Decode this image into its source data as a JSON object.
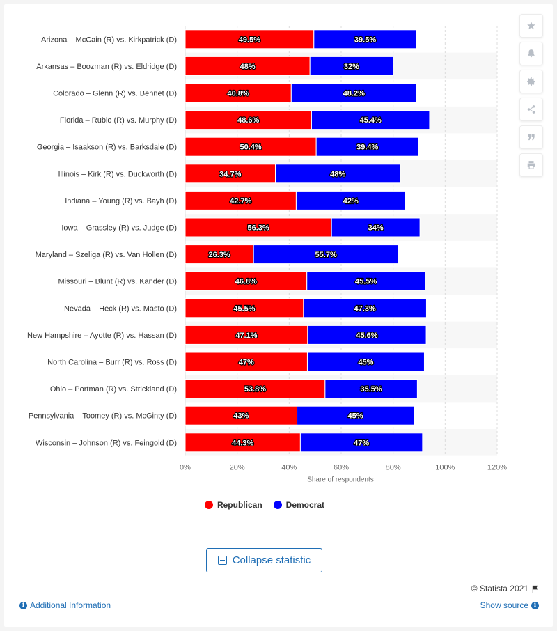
{
  "toolbar": {
    "buttons": [
      "star-icon",
      "bell-icon",
      "gear-icon",
      "share-icon",
      "quote-icon",
      "print-icon"
    ]
  },
  "chart_data": {
    "type": "bar",
    "orientation": "horizontal",
    "stacked": true,
    "categories": [
      "Arizona – McCain (R) vs. Kirkpatrick (D)",
      "Arkansas – Boozman (R) vs. Eldridge (D)",
      "Colorado – Glenn (R) vs. Bennet (D)",
      "Florida – Rubio (R) vs. Murphy (D)",
      "Georgia – Isaakson (R) vs. Barksdale (D)",
      "Illinois – Kirk (R) vs. Duckworth (D)",
      "Indiana – Young (R) vs. Bayh (D)",
      "Iowa – Grassley (R) vs. Judge (D)",
      "Maryland – Szeliga (R) vs. Van Hollen (D)",
      "Missouri – Blunt (R) vs. Kander (D)",
      "Nevada – Heck (R) vs. Masto (D)",
      "New Hampshire – Ayotte (R) vs. Hassan (D)",
      "North Carolina – Burr (R) vs. Ross (D)",
      "Ohio – Portman (R) vs. Strickland (D)",
      "Pennsylvania – Toomey (R) vs. McGinty (D)",
      "Wisconsin – Johnson (R) vs. Feingold (D)"
    ],
    "series": [
      {
        "name": "Republican",
        "color": "#ff0000",
        "values": [
          49.5,
          48,
          40.8,
          48.6,
          50.4,
          34.7,
          42.7,
          56.3,
          26.3,
          46.8,
          45.5,
          47.1,
          47,
          53.8,
          43,
          44.3
        ],
        "labels": [
          "49.5%",
          "48%",
          "40.8%",
          "48.6%",
          "50.4%",
          "34.7%",
          "42.7%",
          "56.3%",
          "26.3%",
          "46.8%",
          "45.5%",
          "47.1%",
          "47%",
          "53.8%",
          "43%",
          "44.3%"
        ]
      },
      {
        "name": "Democrat",
        "color": "#0000ff",
        "values": [
          39.5,
          32,
          48.2,
          45.4,
          39.4,
          48,
          42,
          34,
          55.7,
          45.5,
          47.3,
          45.6,
          45,
          35.5,
          45,
          47
        ],
        "labels": [
          "39.5%",
          "32%",
          "48.2%",
          "45.4%",
          "39.4%",
          "48%",
          "42%",
          "34%",
          "55.7%",
          "45.5%",
          "47.3%",
          "45.6%",
          "45%",
          "35.5%",
          "45%",
          "47%"
        ]
      }
    ],
    "xlabel": "Share of respondents",
    "xlim": [
      0,
      120
    ],
    "xticks": [
      "0%",
      "20%",
      "40%",
      "60%",
      "80%",
      "100%",
      "120%"
    ],
    "grid": true,
    "legend_position": "bottom"
  },
  "collapse_label": "Collapse statistic",
  "copyright": "© Statista 2021",
  "additional_info": "Additional Information",
  "show_source": "Show source"
}
